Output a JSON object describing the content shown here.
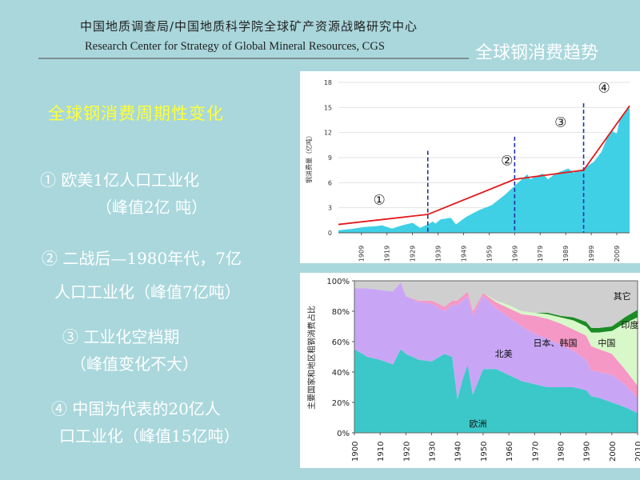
{
  "header": {
    "org_cn": "中国地质调查局/中国地质科学院全球矿产资源战略研究中心",
    "org_en": "Research Center for Strategy of Global Mineral Resources, CGS",
    "slide_title": "全球钢消费趋势"
  },
  "left": {
    "heading": "全球钢消费周期性变化",
    "points": [
      {
        "line1": "① 欧美1亿人口工业化",
        "line2": "（峰值2亿 吨）"
      },
      {
        "line1": "② 二战后—1980年代，7亿",
        "line2": "人口工业化（峰值7亿吨）"
      },
      {
        "line1": "③ 工业化空档期",
        "line2": "（峰值变化不大）"
      },
      {
        "line1": "④ 中国为代表的20亿人",
        "line2": "口工业化（峰值15亿吨）"
      }
    ]
  },
  "colors": {
    "area_fill": "#3fd0e6",
    "trend_line": "#e31a1c",
    "divider": "#1f2f9f",
    "europe": "#3cc8c8",
    "north_america": "#c8a6f5",
    "japan_korea": "#f598c6",
    "china": "#d8f8c9",
    "india": "#1c8c24",
    "other": "#cfcfcf"
  },
  "chart_data": [
    {
      "type": "area",
      "title": "",
      "ylabel": "钢消费量（亿吨）",
      "xlabel": "",
      "ylim": [
        0,
        18
      ],
      "xlim": [
        1900,
        2014
      ],
      "yticks": [
        "0",
        "3",
        "6",
        "9",
        "12",
        "15",
        "18"
      ],
      "xticks": [
        "1909",
        "1919",
        "1929",
        "1939",
        "1949",
        "1959",
        "1969",
        "1979",
        "1989",
        "1999",
        "2009"
      ],
      "series": [
        {
          "x": [
            1900,
            1905,
            1910,
            1915,
            1917,
            1921,
            1925,
            1929,
            1932,
            1935,
            1937,
            1938,
            1940,
            1944,
            1946,
            1950,
            1955,
            1960,
            1965,
            1970,
            1974,
            1975,
            1980,
            1982,
            1985,
            1990,
            1992,
            1995,
            2000,
            2003,
            2005,
            2007,
            2008,
            2009,
            2010,
            2012,
            2014
          ],
          "values": [
            0.3,
            0.45,
            0.7,
            0.8,
            0.9,
            0.5,
            0.9,
            1.2,
            0.6,
            1.0,
            1.35,
            1.1,
            1.6,
            1.8,
            1.0,
            1.9,
            2.7,
            3.3,
            4.5,
            5.9,
            7.0,
            6.4,
            7.1,
            6.4,
            7.1,
            7.7,
            7.2,
            7.5,
            8.5,
            9.7,
            11.2,
            12.3,
            12.0,
            11.9,
            13.4,
            14.3,
            15.2
          ]
        }
      ],
      "trend": {
        "x": [
          1900,
          1935,
          1969,
          1996,
          2014
        ],
        "values": [
          1.0,
          2.2,
          6.4,
          7.5,
          15.2
        ]
      },
      "dividers": [
        1935,
        1969,
        1996
      ],
      "phase_labels": [
        "①",
        "②",
        "③",
        "④"
      ]
    },
    {
      "type": "area",
      "stacked": true,
      "title": "",
      "ylabel": "主要国家和地区粗钢消费占比",
      "xlabel": "",
      "ylim": [
        0,
        100
      ],
      "xlim": [
        1900,
        2010
      ],
      "yticks": [
        "0%",
        "20%",
        "40%",
        "60%",
        "80%",
        "100%"
      ],
      "xticks": [
        "1900",
        "1910",
        "1920",
        "1930",
        "1940",
        "1950",
        "1960",
        "1970",
        "1980",
        "1990",
        "2000",
        "2010"
      ],
      "x": [
        1900,
        1905,
        1910,
        1915,
        1918,
        1920,
        1925,
        1930,
        1935,
        1938,
        1940,
        1942,
        1944,
        1946,
        1950,
        1955,
        1960,
        1965,
        1970,
        1975,
        1980,
        1985,
        1990,
        1992,
        1995,
        2000,
        2005,
        2010
      ],
      "series": [
        {
          "name": "欧洲",
          "values": [
            55,
            50,
            48,
            45,
            55,
            52,
            48,
            47,
            52,
            50,
            22,
            35,
            45,
            25,
            42,
            42,
            38,
            34,
            32,
            30,
            30,
            30,
            28,
            24,
            23,
            20,
            17,
            13
          ]
        },
        {
          "name": "北美",
          "values": [
            40,
            45,
            46,
            48,
            44,
            38,
            38,
            38,
            28,
            34,
            62,
            52,
            45,
            52,
            48,
            40,
            38,
            36,
            33,
            32,
            28,
            24,
            20,
            17,
            17,
            18,
            15,
            10
          ]
        },
        {
          "name": "日本、韩国",
          "values": [
            0,
            0,
            0,
            0,
            0,
            0,
            1,
            2,
            3,
            3,
            3,
            3,
            3,
            3,
            2,
            4,
            6,
            8,
            12,
            13,
            14,
            14,
            16,
            16,
            15,
            14,
            10,
            8
          ]
        },
        {
          "name": "中国",
          "values": [
            0,
            0,
            0,
            0,
            0,
            0,
            0,
            0,
            0,
            0,
            0,
            0,
            0,
            0,
            0,
            1,
            2,
            2,
            2,
            3,
            4,
            6,
            6,
            9,
            11,
            15,
            30,
            45
          ]
        },
        {
          "name": "印度",
          "values": [
            0,
            0,
            0,
            0,
            0,
            0,
            0,
            0,
            0,
            0,
            0,
            0,
            0,
            0,
            0,
            0,
            0,
            0,
            0,
            1,
            1,
            2,
            3,
            3,
            3,
            3,
            4,
            5
          ]
        },
        {
          "name": "其它",
          "values": [
            5,
            5,
            6,
            7,
            1,
            10,
            13,
            13,
            17,
            13,
            13,
            10,
            7,
            20,
            8,
            13,
            16,
            20,
            21,
            21,
            23,
            24,
            27,
            31,
            31,
            30,
            24,
            19
          ]
        }
      ]
    }
  ]
}
